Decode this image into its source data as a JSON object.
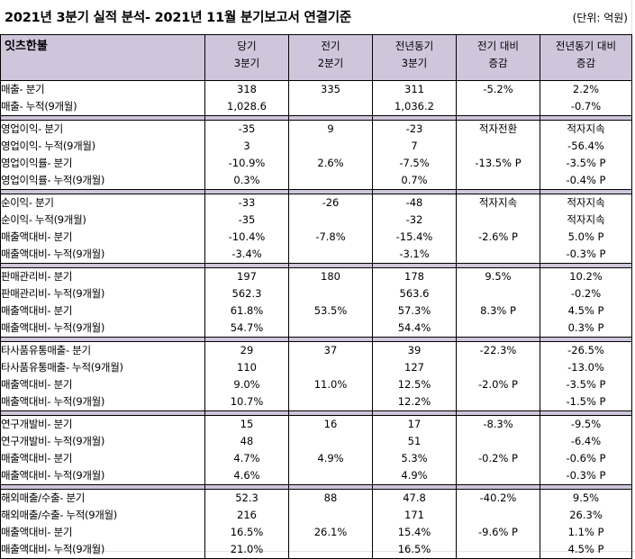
{
  "title": "2021년 3분기 실적 분석- 2021년 11월 분기보고서 연결기준",
  "unit": "(단위: 억원)",
  "header": {
    "company": "잇츠한불",
    "columns": [
      "당기\n3분기",
      "전기\n2분기",
      "전년동기\n3분기",
      "전기 대비\n증감",
      "전년동기 대비\n증감"
    ]
  },
  "groups": [
    {
      "rows": [
        [
          "매출- 분기",
          "318",
          "335",
          "311",
          "-5.2%",
          "2.2%"
        ],
        [
          "매출- 누적(9개월)",
          "1,028.6",
          "",
          "1,036.2",
          "",
          "-0.7%"
        ]
      ]
    },
    {
      "rows": [
        [
          "영업이익- 분기",
          "-35",
          "9",
          "-23",
          "적자전환",
          "적자지속"
        ],
        [
          "영업이익- 누적(9개월)",
          "3",
          "",
          "7",
          "",
          "-56.4%"
        ],
        [
          "영업이익률- 분기",
          "-10.9%",
          "2.6%",
          "-7.5%",
          "-13.5% P",
          "-3.5% P"
        ],
        [
          "영업이익률- 누적(9개월)",
          "0.3%",
          "",
          "0.7%",
          "",
          "-0.4% P"
        ]
      ]
    },
    {
      "rows": [
        [
          "순이익- 분기",
          "-33",
          "-26",
          "-48",
          "적자지속",
          "적자지속"
        ],
        [
          "순이익- 누적(9개월)",
          "-35",
          "",
          "-32",
          "",
          "적자지속"
        ],
        [
          "매출액대비- 분기",
          "-10.4%",
          "-7.8%",
          "-15.4%",
          "-2.6% P",
          "5.0% P"
        ],
        [
          "매출액대비- 누적(9개월)",
          "-3.4%",
          "",
          "-3.1%",
          "",
          "-0.3% P"
        ]
      ]
    },
    {
      "rows": [
        [
          "판매관리비- 분기",
          "197",
          "180",
          "178",
          "9.5%",
          "10.2%"
        ],
        [
          "판매관리비- 누적(9개월)",
          "562.3",
          "",
          "563.6",
          "",
          "-0.2%"
        ],
        [
          "매출액대비- 분기",
          "61.8%",
          "53.5%",
          "57.3%",
          "8.3% P",
          "4.5% P"
        ],
        [
          "매출액대비- 누적(9개월)",
          "54.7%",
          "",
          "54.4%",
          "",
          "0.3% P"
        ]
      ]
    },
    {
      "rows": [
        [
          "타사품유통매출- 분기",
          "29",
          "37",
          "39",
          "-22.3%",
          "-26.5%"
        ],
        [
          "타사품유통매출- 누적(9개월)",
          "110",
          "",
          "127",
          "",
          "-13.0%"
        ],
        [
          "매출액대비- 분기",
          "9.0%",
          "11.0%",
          "12.5%",
          "-2.0% P",
          "-3.5% P"
        ],
        [
          "매출액대비- 누적(9개월)",
          "10.7%",
          "",
          "12.2%",
          "",
          "-1.5% P"
        ]
      ]
    },
    {
      "rows": [
        [
          "연구개발비- 분기",
          "15",
          "16",
          "17",
          "-8.3%",
          "-9.5%"
        ],
        [
          "연구개발비- 누적(9개월)",
          "48",
          "",
          "51",
          "",
          "-6.4%"
        ],
        [
          "매출액대비- 분기",
          "4.7%",
          "4.9%",
          "5.3%",
          "-0.2% P",
          "-0.6% P"
        ],
        [
          "매출액대비- 누적(9개월)",
          "4.6%",
          "",
          "4.9%",
          "",
          "-0.3% P"
        ]
      ]
    },
    {
      "rows": [
        [
          "해외매출/수출- 분기",
          "52.3",
          "88",
          "47.8",
          "-40.2%",
          "9.5%"
        ],
        [
          "해외매출/수출- 누적(9개월)",
          "216",
          "",
          "171",
          "",
          "26.3%"
        ],
        [
          "매출액대비- 분기",
          "16.5%",
          "26.1%",
          "15.4%",
          "-9.6% P",
          "1.1% P"
        ],
        [
          "매출액대비- 누적(9개월)",
          "21.0%",
          "",
          "16.5%",
          "",
          "4.5% P"
        ]
      ]
    }
  ]
}
